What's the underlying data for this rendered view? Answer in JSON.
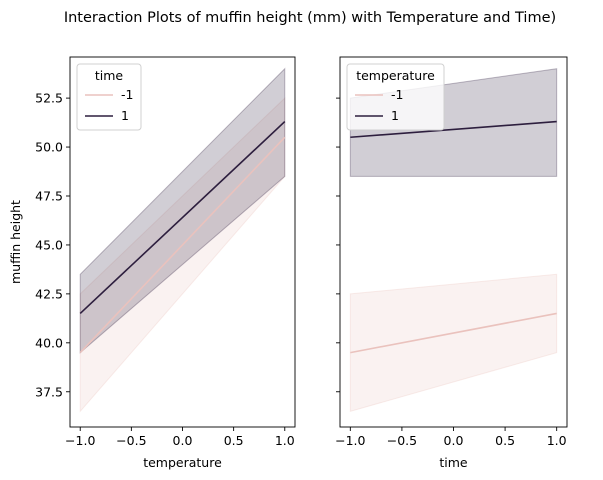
{
  "figure": {
    "suptitle": "Interaction Plots of muffin height (mm) with Temperature and Time)"
  },
  "chart_data": [
    {
      "type": "line",
      "title": "",
      "xlabel": "temperature",
      "ylabel": "muffin height",
      "xlim": [
        -1.1,
        1.1
      ],
      "ylim": [
        35.7,
        54.6
      ],
      "xticks": [
        "−1.0",
        "−0.5",
        "0.0",
        "0.5",
        "1.0"
      ],
      "yticks": [
        "37.5",
        "40.0",
        "42.5",
        "45.0",
        "47.5",
        "50.0",
        "52.5"
      ],
      "legend": {
        "title": "time",
        "placement": "top-left",
        "entries": [
          "-1",
          "1"
        ]
      },
      "series": [
        {
          "name": "-1",
          "color": "#eac2bd",
          "x": [
            -1,
            1
          ],
          "y": [
            39.5,
            50.5
          ],
          "ci_low": [
            36.5,
            48.5
          ],
          "ci_high": [
            42.5,
            52.5
          ]
        },
        {
          "name": "1",
          "color": "#2d1e3e",
          "x": [
            -1,
            1
          ],
          "y": [
            41.5,
            51.3
          ],
          "ci_low": [
            39.5,
            48.5
          ],
          "ci_high": [
            43.5,
            54.0
          ]
        }
      ]
    },
    {
      "type": "line",
      "title": "",
      "xlabel": "time",
      "ylabel": "",
      "xlim": [
        -1.1,
        1.1
      ],
      "ylim": [
        35.7,
        54.6
      ],
      "xticks": [
        "−1.0",
        "−0.5",
        "0.0",
        "0.5",
        "1.0"
      ],
      "yticks": [],
      "legend": {
        "title": "temperature",
        "placement": "top-left",
        "entries": [
          "-1",
          "1"
        ]
      },
      "series": [
        {
          "name": "-1",
          "color": "#eac2bd",
          "x": [
            -1,
            1
          ],
          "y": [
            39.5,
            41.5
          ],
          "ci_low": [
            36.5,
            39.5
          ],
          "ci_high": [
            42.5,
            43.5
          ]
        },
        {
          "name": "1",
          "color": "#2d1e3e",
          "x": [
            -1,
            1
          ],
          "y": [
            50.5,
            51.3
          ],
          "ci_low": [
            48.5,
            48.5
          ],
          "ci_high": [
            52.5,
            54.0
          ]
        }
      ]
    }
  ]
}
